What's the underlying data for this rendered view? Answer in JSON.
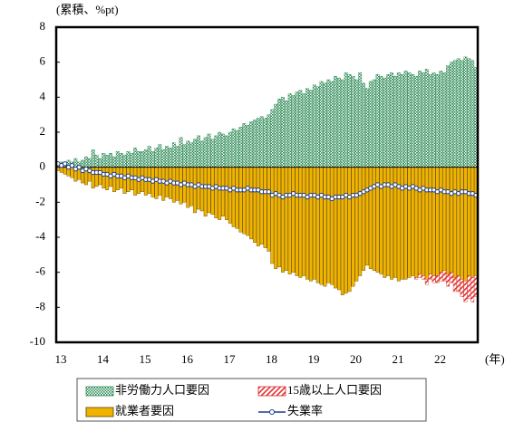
{
  "chart_data": {
    "type": "bar",
    "y_label": "(累積、%pt)",
    "x_label": "(年)",
    "categories": [
      "13",
      null,
      null,
      null,
      null,
      null,
      null,
      null,
      null,
      null,
      null,
      null,
      "14",
      null,
      null,
      null,
      null,
      null,
      null,
      null,
      null,
      null,
      null,
      null,
      "15",
      null,
      null,
      null,
      null,
      null,
      null,
      null,
      null,
      null,
      null,
      null,
      "16",
      null,
      null,
      null,
      null,
      null,
      null,
      null,
      null,
      null,
      null,
      null,
      "17",
      null,
      null,
      null,
      null,
      null,
      null,
      null,
      null,
      null,
      null,
      null,
      "18",
      null,
      null,
      null,
      null,
      null,
      null,
      null,
      null,
      null,
      null,
      null,
      "19",
      null,
      null,
      null,
      null,
      null,
      null,
      null,
      null,
      null,
      null,
      null,
      "20",
      null,
      null,
      null,
      null,
      null,
      null,
      null,
      null,
      null,
      null,
      null,
      "21",
      null,
      null,
      null,
      null,
      null,
      null,
      null,
      null,
      null,
      null,
      null,
      "22",
      null,
      null,
      null,
      null,
      null,
      null,
      null,
      null,
      null,
      null,
      null
    ],
    "ylim": [
      -10,
      8
    ],
    "yticks": [
      -10,
      -8,
      -6,
      -4,
      -2,
      0,
      2,
      4,
      6,
      8
    ],
    "series": [
      {
        "name": "非労働力人口要因",
        "color": "#2e8b57",
        "pattern": "dots",
        "values": [
          0.2,
          0.3,
          0.2,
          0.4,
          0.3,
          0.5,
          0.3,
          0.4,
          0.6,
          0.5,
          1.0,
          0.7,
          0.5,
          0.8,
          0.7,
          0.8,
          0.6,
          0.9,
          0.8,
          0.7,
          0.9,
          0.8,
          1.1,
          0.9,
          0.9,
          1.0,
          1.2,
          0.9,
          1.1,
          1.3,
          1.0,
          1.2,
          1.1,
          1.4,
          1.2,
          1.7,
          1.3,
          1.5,
          1.4,
          1.6,
          1.8,
          1.5,
          1.7,
          1.9,
          1.6,
          1.8,
          2.0,
          1.9,
          1.8,
          2.0,
          2.2,
          2.1,
          2.3,
          2.5,
          2.4,
          2.6,
          2.7,
          2.8,
          2.9,
          2.8,
          3.0,
          3.3,
          3.6,
          3.9,
          4.0,
          3.8,
          4.2,
          4.1,
          4.3,
          4.4,
          4.2,
          4.5,
          4.4,
          4.7,
          4.6,
          4.9,
          4.8,
          5.0,
          4.9,
          5.2,
          5.1,
          5.0,
          5.4,
          5.3,
          5.2,
          5.0,
          5.4,
          4.8,
          4.5,
          4.9,
          5.0,
          5.3,
          5.2,
          5.1,
          5.3,
          5.4,
          5.2,
          5.4,
          5.3,
          5.5,
          5.4,
          5.3,
          5.2,
          5.5,
          5.4,
          5.6,
          5.3,
          5.4,
          5.3,
          5.5,
          5.4,
          5.8,
          6.0,
          6.1,
          6.2,
          6.1,
          6.3,
          6.2,
          6.1,
          5.7
        ]
      },
      {
        "name": "15歳以上人口要因",
        "color": "#e03030",
        "pattern": "stripes",
        "values": [
          0,
          0,
          0,
          0,
          0,
          0,
          0,
          0,
          0,
          0,
          0,
          0,
          0,
          0,
          0,
          0,
          0,
          0,
          0,
          0,
          0,
          0,
          0,
          0,
          0,
          0,
          0,
          0,
          0,
          0,
          0,
          0,
          0,
          0,
          0,
          0,
          0,
          0,
          0,
          0,
          0,
          0,
          0,
          0,
          0,
          0,
          0,
          0,
          0,
          0,
          0,
          0,
          0,
          0,
          0,
          0,
          0,
          0,
          0,
          0,
          0,
          0,
          0,
          0,
          0,
          0,
          0,
          0,
          0,
          0,
          0,
          0,
          0,
          0,
          0,
          0,
          0,
          0,
          0,
          0,
          0,
          0,
          0,
          0,
          0,
          0,
          0,
          0,
          0,
          0,
          0,
          0,
          0,
          0,
          0,
          0,
          0,
          0,
          0,
          0,
          0,
          0,
          -0.1,
          -0.2,
          -0.2,
          -0.3,
          -0.3,
          -0.4,
          -0.4,
          -0.5,
          -0.6,
          -0.7,
          -0.6,
          -0.8,
          -0.9,
          -1.0,
          -1.2,
          -1.3,
          -1.4,
          -1.2
        ]
      },
      {
        "name": "就業者要因",
        "color": "#f0b400",
        "pattern": "solid",
        "values": [
          -0.2,
          -0.3,
          -0.4,
          -0.5,
          -0.6,
          -0.8,
          -0.7,
          -0.9,
          -1.0,
          -0.8,
          -1.2,
          -1.1,
          -1.0,
          -1.2,
          -1.3,
          -1.1,
          -1.4,
          -1.3,
          -1.2,
          -1.5,
          -1.4,
          -1.3,
          -1.6,
          -1.5,
          -1.4,
          -1.6,
          -1.5,
          -1.7,
          -1.8,
          -1.6,
          -1.9,
          -1.7,
          -1.8,
          -2.0,
          -1.9,
          -2.1,
          -2.0,
          -2.3,
          -2.2,
          -2.6,
          -2.4,
          -2.5,
          -2.8,
          -2.6,
          -2.7,
          -2.9,
          -3.0,
          -2.8,
          -3.0,
          -3.2,
          -3.4,
          -3.5,
          -3.7,
          -3.8,
          -3.9,
          -4.1,
          -4.3,
          -4.5,
          -4.4,
          -4.6,
          -4.8,
          -5.5,
          -5.8,
          -5.7,
          -6.0,
          -5.9,
          -6.1,
          -6.0,
          -6.2,
          -6.3,
          -6.2,
          -6.4,
          -6.5,
          -6.4,
          -6.6,
          -6.7,
          -6.8,
          -6.6,
          -6.7,
          -6.9,
          -7.0,
          -7.3,
          -7.2,
          -7.1,
          -6.8,
          -6.5,
          -6.2,
          -5.9,
          -5.6,
          -5.8,
          -5.9,
          -6.0,
          -6.1,
          -6.3,
          -6.2,
          -6.4,
          -6.3,
          -6.5,
          -6.4,
          -6.4,
          -6.3,
          -6.2,
          -6.3,
          -6.1,
          -6.2,
          -6.4,
          -6.1,
          -6.2,
          -6.2,
          -6.0,
          -5.9,
          -6.1,
          -6.0,
          -6.3,
          -6.2,
          -6.4,
          -6.5,
          -6.2,
          -6.3,
          -6.2
        ]
      },
      {
        "name": "失業率",
        "color": "#1f3c88",
        "type": "line",
        "values": [
          0.2,
          0.1,
          0.2,
          0.0,
          0.1,
          -0.1,
          0.0,
          -0.2,
          -0.1,
          -0.2,
          -0.3,
          -0.3,
          -0.3,
          -0.4,
          -0.4,
          -0.5,
          -0.4,
          -0.5,
          -0.5,
          -0.6,
          -0.5,
          -0.6,
          -0.6,
          -0.7,
          -0.6,
          -0.7,
          -0.7,
          -0.8,
          -0.7,
          -0.8,
          -0.8,
          -0.9,
          -0.8,
          -0.9,
          -0.9,
          -1.0,
          -0.9,
          -1.0,
          -1.0,
          -1.1,
          -1.0,
          -1.1,
          -1.1,
          -1.1,
          -1.2,
          -1.1,
          -1.2,
          -1.2,
          -1.2,
          -1.3,
          -1.2,
          -1.3,
          -1.3,
          -1.3,
          -1.2,
          -1.3,
          -1.3,
          -1.3,
          -1.4,
          -1.4,
          -1.4,
          -1.6,
          -1.5,
          -1.6,
          -1.7,
          -1.6,
          -1.6,
          -1.5,
          -1.6,
          -1.6,
          -1.6,
          -1.7,
          -1.6,
          -1.6,
          -1.7,
          -1.6,
          -1.7,
          -1.7,
          -1.8,
          -1.7,
          -1.7,
          -1.7,
          -1.6,
          -1.7,
          -1.6,
          -1.6,
          -1.5,
          -1.4,
          -1.3,
          -1.2,
          -1.1,
          -1.0,
          -1.1,
          -1.0,
          -1.0,
          -1.1,
          -1.0,
          -1.1,
          -1.2,
          -1.1,
          -1.2,
          -1.1,
          -1.2,
          -1.3,
          -1.2,
          -1.3,
          -1.3,
          -1.3,
          -1.4,
          -1.3,
          -1.4,
          -1.4,
          -1.5,
          -1.4,
          -1.5,
          -1.4,
          -1.4,
          -1.5,
          -1.5,
          -1.6
        ]
      }
    ]
  }
}
